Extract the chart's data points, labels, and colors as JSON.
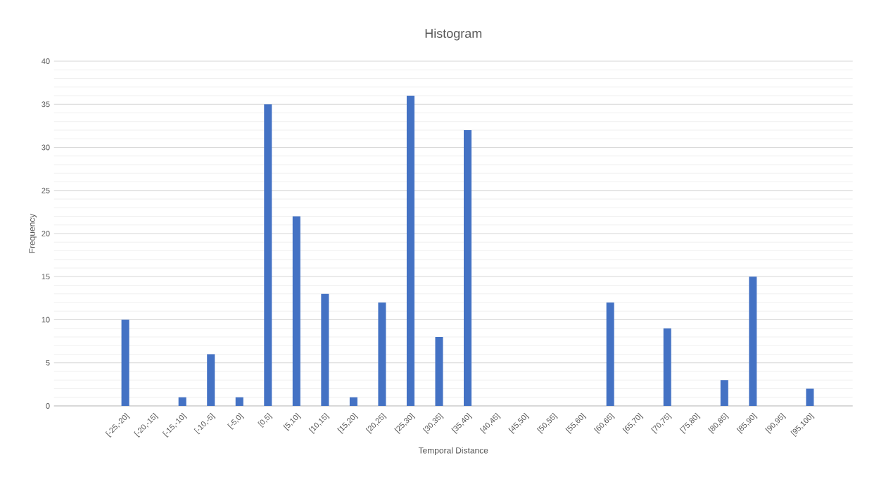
{
  "chart_data": {
    "type": "bar",
    "title": "Histogram",
    "xlabel": "Temporal Distance",
    "ylabel": "Frequency",
    "categories": [
      null,
      null,
      "[-25,-20]",
      "[-20,-15]",
      "[-15,-10]",
      "[-10,-5]",
      "[-5,0]",
      "[0,5]",
      "[5,10]",
      "[10,15]",
      "[15,20]",
      "[20,25]",
      "[25,30]",
      "[30,35]",
      "[35,40]",
      "[40,45]",
      "[45,50]",
      "[50,55]",
      "[55,60]",
      "[60,65]",
      "[65,70]",
      "[70,75]",
      "[75,80]",
      "[80,85]",
      "[85,90]",
      "[90,95]",
      "[95,100]",
      null
    ],
    "values": [
      null,
      null,
      10,
      0,
      1,
      6,
      1,
      35,
      22,
      13,
      1,
      12,
      36,
      8,
      32,
      0,
      0,
      0,
      0,
      12,
      0,
      9,
      0,
      3,
      15,
      0,
      2,
      null
    ],
    "color": "#4472c4",
    "ylim": [
      0,
      40
    ],
    "yticks": [
      0,
      5,
      10,
      15,
      20,
      25,
      30,
      35,
      40
    ],
    "grid": "y"
  }
}
